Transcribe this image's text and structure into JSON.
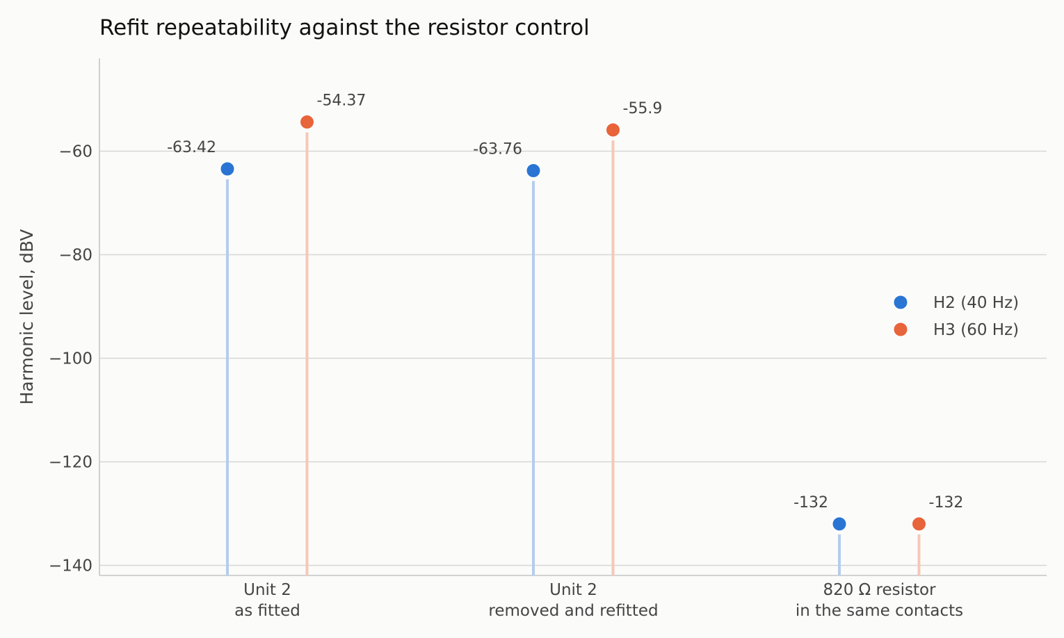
{
  "chart_data": {
    "type": "lollipop",
    "title": "Refit repeatability against the resistor control",
    "xlabel": "",
    "ylabel": "Harmonic level, dBV",
    "categories": [
      [
        "Unit 2",
        "as fitted"
      ],
      [
        "Unit 2",
        "removed and refitted"
      ],
      [
        "820 Ω resistor",
        "in the same contacts"
      ]
    ],
    "yticks": [
      -60,
      -80,
      -100,
      -120,
      -140
    ],
    "ytick_labels": [
      "−60",
      "−80",
      "−100",
      "−120",
      "−140"
    ],
    "ylim": [
      -142,
      -42
    ],
    "grid": "horizontal",
    "legend_position": "right",
    "series": [
      {
        "name": "H2 (40 Hz)",
        "color": "#2a75d3",
        "stem_color": "#b5cdec",
        "values": [
          -63.42,
          -63.76,
          -132
        ],
        "labels": [
          "-63.42",
          "-63.76",
          "-132"
        ]
      },
      {
        "name": "H3 (60 Hz)",
        "color": "#e8643a",
        "stem_color": "#f5c8b7",
        "values": [
          -54.37,
          -55.9,
          -132
        ],
        "labels": [
          "-54.37",
          "-55.9",
          "-132"
        ]
      }
    ]
  }
}
